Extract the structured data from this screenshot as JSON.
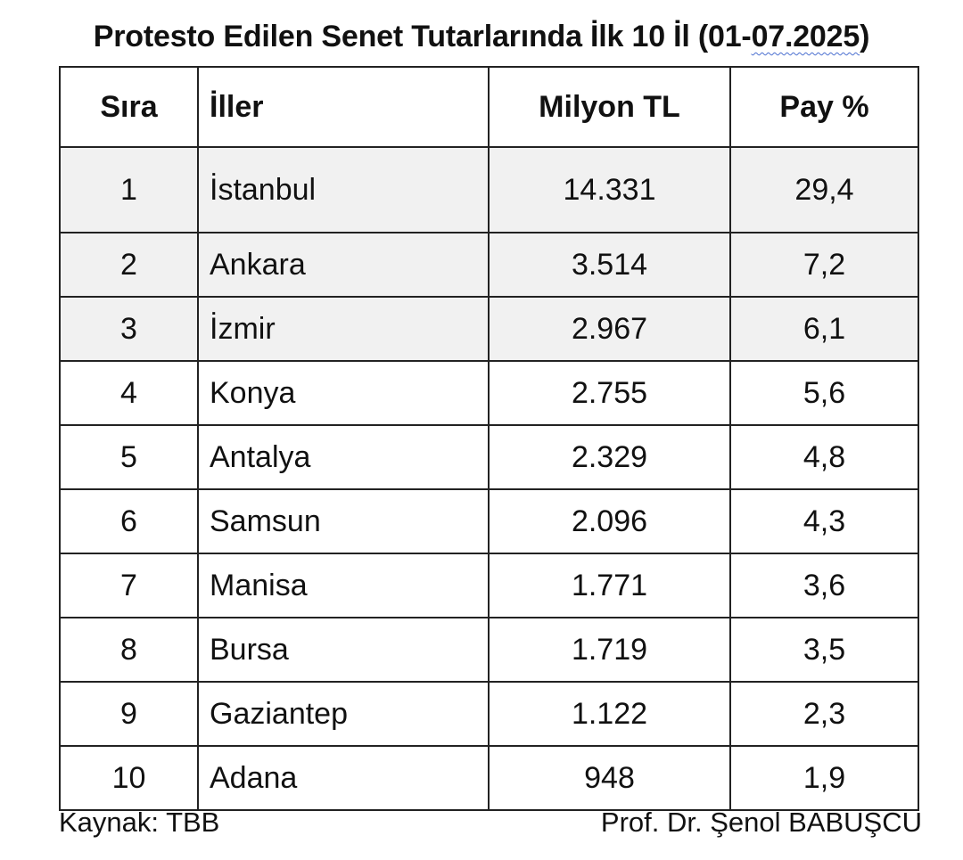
{
  "title_main": "Protesto Edilen Senet Tutarlarında İlk 10 İl (01-",
  "title_underlined": "07.2025",
  "title_end": ")",
  "table": {
    "headers": {
      "rank": "Sıra",
      "city": "İller",
      "amount": "Milyon TL",
      "share": "Pay %"
    },
    "rows": [
      {
        "rank": "1",
        "city": "İstanbul",
        "amount": "14.331",
        "share": "29,4"
      },
      {
        "rank": "2",
        "city": "Ankara",
        "amount": "3.514",
        "share": "7,2"
      },
      {
        "rank": "3",
        "city": "İzmir",
        "amount": "2.967",
        "share": "6,1"
      },
      {
        "rank": "4",
        "city": "Konya",
        "amount": "2.755",
        "share": "5,6"
      },
      {
        "rank": "5",
        "city": "Antalya",
        "amount": "2.329",
        "share": "4,8"
      },
      {
        "rank": "6",
        "city": "Samsun",
        "amount": "2.096",
        "share": "4,3"
      },
      {
        "rank": "7",
        "city": "Manisa",
        "amount": "1.771",
        "share": "3,6"
      },
      {
        "rank": "8",
        "city": "Bursa",
        "amount": "1.719",
        "share": "3,5"
      },
      {
        "rank": "9",
        "city": "Gaziantep",
        "amount": "1.122",
        "share": "2,3"
      },
      {
        "rank": "10",
        "city": "Adana",
        "amount": "948",
        "share": "1,9"
      }
    ],
    "shaded_row_color": "#f1f1f1"
  },
  "footer": {
    "source": "Kaynak: TBB",
    "author": "Prof. Dr. Şenol BABUŞCU"
  }
}
